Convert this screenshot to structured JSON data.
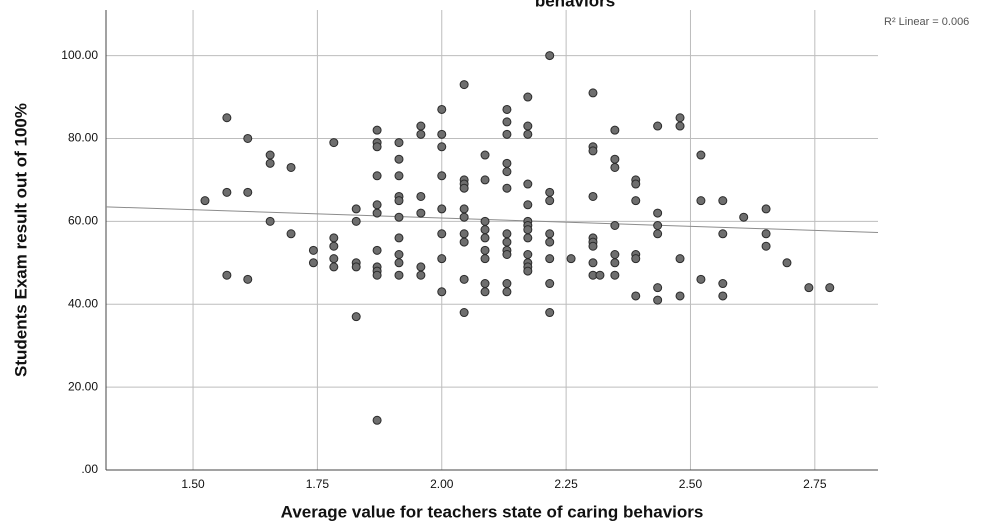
{
  "chart_data": {
    "type": "scatter",
    "title": "behaviors",
    "x_label": "Average value for teachers state of caring behaviors",
    "y_label": "Students Exam result out of 100%",
    "annotation": "R² Linear = 0.006",
    "color": "#6e6e6e",
    "fit_line": {
      "x": [
        1.325,
        2.877
      ],
      "y": [
        63.5,
        57.3
      ],
      "color": "#8c8c8c"
    },
    "xlim": [
      1.325,
      2.877
    ],
    "ylim": [
      0,
      111
    ],
    "xticks": [
      {
        "value": 1.5,
        "label": "1.50"
      },
      {
        "value": 1.75,
        "label": "1.75"
      },
      {
        "value": 2,
        "label": "2.00"
      },
      {
        "value": 2.25,
        "label": "2.25"
      },
      {
        "value": 2.5,
        "label": "2.50"
      },
      {
        "value": 2.75,
        "label": "2.75"
      }
    ],
    "yticks": [
      {
        "value": 0,
        "label": ".00"
      },
      {
        "value": 20,
        "label": "20.00"
      },
      {
        "value": 40,
        "label": "40.00"
      },
      {
        "value": 60,
        "label": "60.00"
      },
      {
        "value": 80,
        "label": "80.00"
      },
      {
        "value": 100,
        "label": "100.00"
      }
    ],
    "grid": true,
    "x": [
      1.524,
      1.568,
      1.568,
      1.568,
      1.61,
      1.61,
      1.61,
      1.655,
      1.655,
      1.655,
      1.697,
      1.697,
      1.742,
      1.742,
      1.783,
      1.783,
      1.783,
      1.783,
      1.783,
      1.828,
      1.828,
      1.828,
      1.828,
      1.828,
      1.87,
      1.87,
      1.87,
      1.87,
      1.87,
      1.87,
      1.87,
      1.87,
      1.87,
      1.87,
      1.87,
      1.914,
      1.914,
      1.914,
      1.914,
      1.914,
      1.914,
      1.914,
      1.914,
      1.914,
      1.914,
      1.958,
      1.958,
      1.958,
      1.958,
      1.958,
      1.958,
      2.0,
      2.0,
      2.0,
      2.0,
      2.0,
      2.0,
      2.0,
      2.0,
      2.045,
      2.045,
      2.045,
      2.045,
      2.045,
      2.045,
      2.045,
      2.045,
      2.045,
      2.045,
      2.087,
      2.087,
      2.087,
      2.087,
      2.087,
      2.087,
      2.087,
      2.087,
      2.087,
      2.131,
      2.131,
      2.131,
      2.131,
      2.131,
      2.131,
      2.131,
      2.131,
      2.131,
      2.131,
      2.131,
      2.131,
      2.173,
      2.173,
      2.173,
      2.173,
      2.173,
      2.173,
      2.173,
      2.173,
      2.173,
      2.173,
      2.173,
      2.173,
      2.173,
      2.217,
      2.217,
      2.217,
      2.217,
      2.217,
      2.217,
      2.217,
      2.217,
      2.26,
      2.304,
      2.304,
      2.304,
      2.304,
      2.304,
      2.304,
      2.304,
      2.304,
      2.304,
      2.318,
      2.348,
      2.348,
      2.348,
      2.348,
      2.348,
      2.348,
      2.348,
      2.39,
      2.39,
      2.39,
      2.39,
      2.39,
      2.39,
      2.434,
      2.434,
      2.434,
      2.434,
      2.434,
      2.434,
      2.479,
      2.479,
      2.479,
      2.479,
      2.521,
      2.521,
      2.521,
      2.565,
      2.565,
      2.565,
      2.565,
      2.607,
      2.652,
      2.652,
      2.652,
      2.694,
      2.738,
      2.78
    ],
    "values": [
      65,
      85,
      67,
      47,
      80,
      67,
      46,
      76,
      74,
      60,
      73,
      57,
      53,
      50,
      79,
      56,
      54,
      51,
      49,
      63,
      60,
      50,
      49,
      37,
      82,
      79,
      78,
      71,
      64,
      62,
      53,
      49,
      48,
      47,
      12,
      79,
      75,
      71,
      66,
      65,
      61,
      56,
      52,
      50,
      47,
      83,
      81,
      66,
      62,
      49,
      47,
      87,
      81,
      78,
      71,
      63,
      57,
      51,
      43,
      93,
      70,
      69,
      68,
      63,
      61,
      57,
      55,
      46,
      38,
      76,
      70,
      60,
      58,
      56,
      53,
      51,
      45,
      43,
      87,
      84,
      81,
      74,
      72,
      68,
      57,
      55,
      53,
      52,
      45,
      43,
      90,
      83,
      81,
      69,
      64,
      60,
      59,
      58,
      56,
      52,
      50,
      49,
      48,
      100,
      67,
      65,
      57,
      55,
      51,
      45,
      38,
      51,
      91,
      78,
      77,
      66,
      56,
      55,
      54,
      50,
      47,
      47,
      82,
      75,
      73,
      59,
      52,
      50,
      47,
      70,
      69,
      65,
      52,
      51,
      42,
      83,
      62,
      59,
      57,
      44,
      41,
      85,
      83,
      51,
      42,
      76,
      65,
      46,
      65,
      57,
      45,
      42,
      61,
      63,
      57,
      54,
      50,
      44,
      44
    ]
  }
}
